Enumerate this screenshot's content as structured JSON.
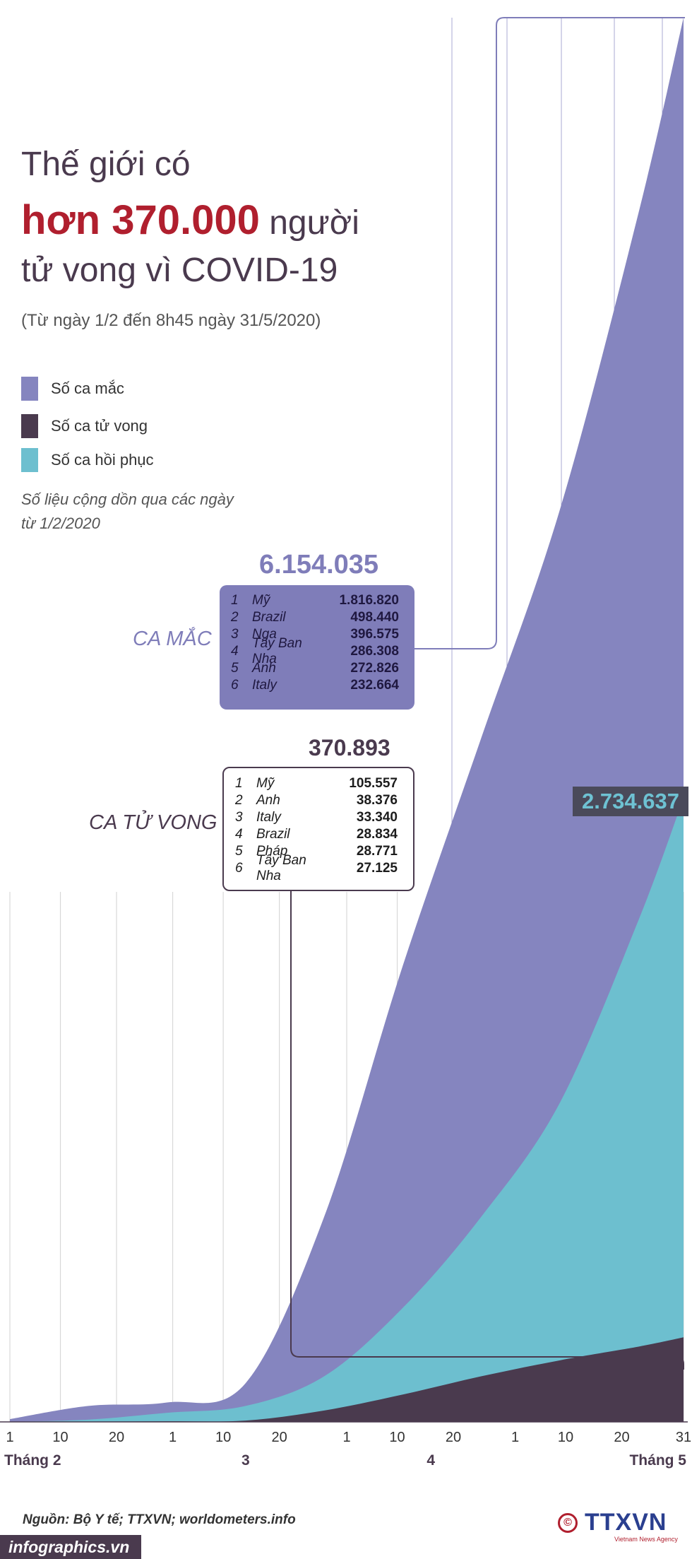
{
  "title": {
    "line1": "Thế giới có",
    "line2_highlight": "hơn 370.000",
    "line2_rest": "người",
    "line3": "tử vong vì COVID-19"
  },
  "subtitle": "(Từ ngày 1/2 đến 8h45 ngày 31/5/2020)",
  "legend": [
    {
      "label": "Số ca mắc",
      "color": "#8585bf"
    },
    {
      "label": "Số ca tử vong",
      "color": "#4a3a4e"
    },
    {
      "label": "Số ca hồi phục",
      "color": "#6dbfcf"
    }
  ],
  "note": "Số liệu cộng dồn qua các ngày\ntừ 1/2/2020",
  "cases": {
    "label": "CA MẮC",
    "total": "6.154.035",
    "top": [
      {
        "rank": "1",
        "country": "Mỹ",
        "value": "1.816.820"
      },
      {
        "rank": "2",
        "country": "Brazil",
        "value": "498.440"
      },
      {
        "rank": "3",
        "country": "Nga",
        "value": "396.575"
      },
      {
        "rank": "4",
        "country": "Tây Ban Nha",
        "value": "286.308"
      },
      {
        "rank": "5",
        "country": "Anh",
        "value": "272.826"
      },
      {
        "rank": "6",
        "country": "Italy",
        "value": "232.664"
      }
    ]
  },
  "deaths": {
    "label": "CA TỬ VONG",
    "total": "370.893",
    "top": [
      {
        "rank": "1",
        "country": "Mỹ",
        "value": "105.557"
      },
      {
        "rank": "2",
        "country": "Anh",
        "value": "38.376"
      },
      {
        "rank": "3",
        "country": "Italy",
        "value": "33.340"
      },
      {
        "rank": "4",
        "country": "Brazil",
        "value": "28.834"
      },
      {
        "rank": "5",
        "country": "Pháp",
        "value": "28.771"
      },
      {
        "rank": "6",
        "country": "Tây Ban Nha",
        "value": "27.125"
      }
    ]
  },
  "recovered": {
    "total": "2.734.637"
  },
  "chart_data": {
    "type": "area",
    "title": "Thế giới có hơn 370.000 người tử vong vì COVID-19",
    "x": [
      1,
      15,
      29,
      43,
      57,
      71,
      85,
      99,
      113,
      121
    ],
    "x_unit": "days since 1/2/2020 (day 1 = 1/2, day 121 = 31/5)",
    "series": [
      {
        "name": "Số ca mắc",
        "color": "#8585bf",
        "values": [
          12000,
          70000,
          85000,
          170000,
          900000,
          2000000,
          3000000,
          4000000,
          5300000,
          6154035
        ]
      },
      {
        "name": "Số ca hồi phục",
        "color": "#6dbfcf",
        "values": [
          300,
          10000,
          40000,
          70000,
          200000,
          500000,
          900000,
          1400000,
          2200000,
          2734637
        ]
      },
      {
        "name": "Số ca tử vong",
        "color": "#4a3a4e",
        "values": [
          260,
          1500,
          2800,
          6000,
          50000,
          120000,
          200000,
          270000,
          330000,
          370893
        ]
      }
    ],
    "ylim": [
      0,
      6154035
    ],
    "ticks": [
      {
        "day": 1,
        "label": "1"
      },
      {
        "day": 10,
        "label": "10"
      },
      {
        "day": 20,
        "label": "20"
      },
      {
        "day": 30,
        "label": "1"
      },
      {
        "day": 39,
        "label": "10"
      },
      {
        "day": 49,
        "label": "20"
      },
      {
        "day": 61,
        "label": "1"
      },
      {
        "day": 70,
        "label": "10"
      },
      {
        "day": 80,
        "label": "20"
      },
      {
        "day": 91,
        "label": "1"
      },
      {
        "day": 100,
        "label": "10"
      },
      {
        "day": 110,
        "label": "20"
      },
      {
        "day": 121,
        "label": "31"
      }
    ],
    "month_labels": [
      {
        "day": 1,
        "label": "Tháng 2"
      },
      {
        "day": 43,
        "label": "3"
      },
      {
        "day": 76,
        "label": "4"
      },
      {
        "day": 121,
        "label": "Tháng 5"
      }
    ]
  },
  "footer": {
    "source": "Nguồn: Bộ Y tế; TTXVN; worldometers.info",
    "site": "infographics.vn",
    "logo": "TTXVN",
    "logo_tag": "Vietnam News Agency",
    "copyright_symbol": "©"
  }
}
